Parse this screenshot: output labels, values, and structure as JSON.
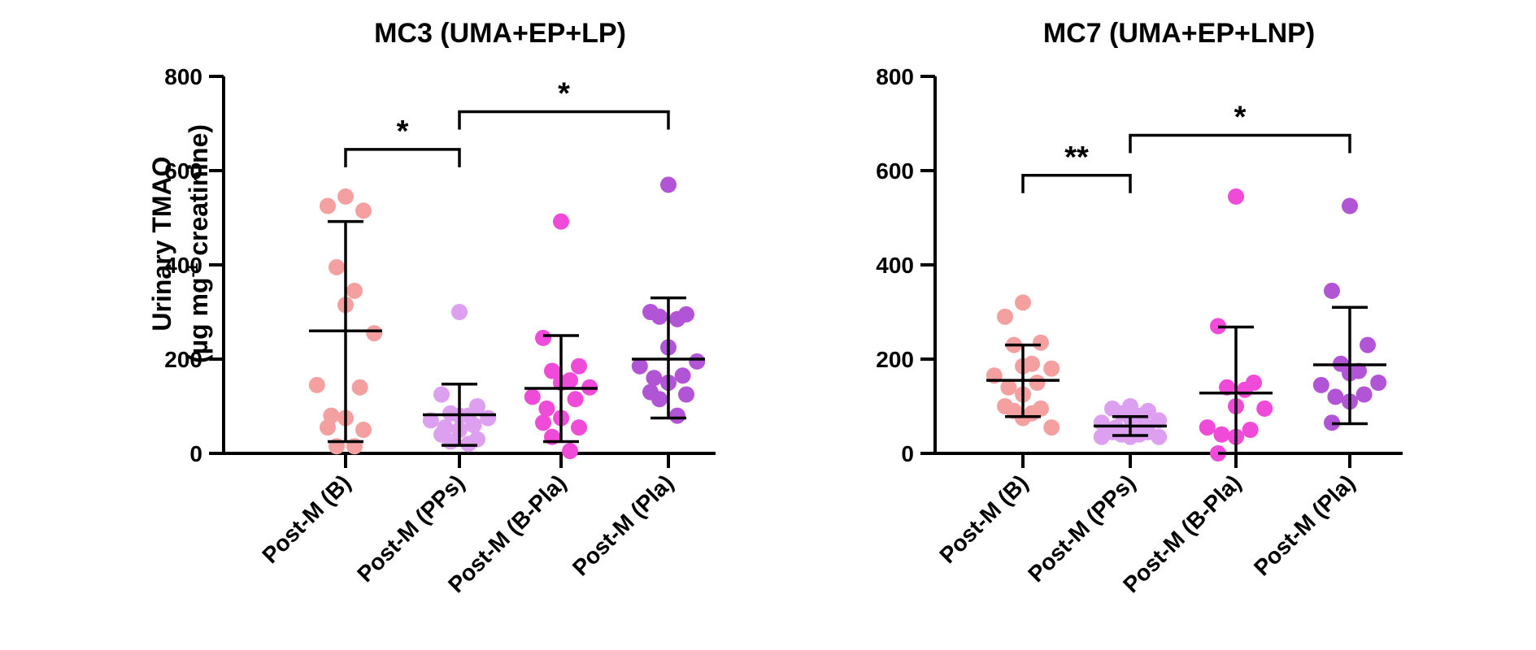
{
  "chart_data": [
    {
      "type": "scatter",
      "title": "MC3 (UMA+EP+LP)",
      "ylabel_line1": "Urinary TMAO",
      "ylabel_line2_pre": "(µg mg",
      "ylabel_line2_sup": "-1",
      "ylabel_line2_post": " creatinine)",
      "ylim": [
        0,
        800
      ],
      "yticks": [
        "0",
        "200",
        "400",
        "600",
        "800"
      ],
      "categories": [
        "Post-M (B)",
        "Post-M (PPs)",
        "Post-M (B-Pla)",
        "Post-M (Pla)"
      ],
      "colors": [
        "#F4A0A0",
        "#DDA0F0",
        "#F04AD8",
        "#B254D6"
      ],
      "series": [
        {
          "name": "Post-M (B)",
          "values": [
            545,
            525,
            515,
            395,
            345,
            315,
            255,
            145,
            140,
            80,
            75,
            55,
            50,
            15,
            15
          ],
          "mean": 260,
          "error_low": 25,
          "error_high": 492
        },
        {
          "name": "Post-M (PPs)",
          "values": [
            300,
            125,
            100,
            85,
            80,
            80,
            75,
            70,
            60,
            55,
            50,
            40,
            30,
            25,
            20
          ],
          "mean": 82,
          "error_low": 17,
          "error_high": 147
        },
        {
          "name": "Post-M (B-Pla)",
          "values": [
            492,
            245,
            185,
            175,
            155,
            150,
            140,
            120,
            115,
            95,
            75,
            65,
            55,
            35,
            5
          ],
          "mean": 138,
          "error_low": 25,
          "error_high": 250
        },
        {
          "name": "Post-M (Pla)",
          "values": [
            570,
            300,
            295,
            290,
            285,
            225,
            195,
            185,
            165,
            160,
            150,
            130,
            125,
            115,
            80
          ],
          "mean": 200,
          "error_low": 75,
          "error_high": 330
        }
      ],
      "significance": [
        {
          "from": 0,
          "to": 1,
          "label": "*",
          "y": 645
        },
        {
          "from": 1,
          "to": 3,
          "label": "*",
          "y": 725
        }
      ]
    },
    {
      "type": "scatter",
      "title": "MC7 (UMA+EP+LNP)",
      "ylim": [
        0,
        800
      ],
      "yticks": [
        "0",
        "200",
        "400",
        "600",
        "800"
      ],
      "categories": [
        "Post-M (B)",
        "Post-M (PPs)",
        "Post-M (B-Pla)",
        "Post-M (Pla)"
      ],
      "colors": [
        "#F4A0A0",
        "#DDA0F0",
        "#F04AD8",
        "#B254D6"
      ],
      "series": [
        {
          "name": "Post-M (B)",
          "values": [
            320,
            290,
            235,
            230,
            190,
            185,
            180,
            165,
            150,
            140,
            125,
            100,
            95,
            90,
            85,
            75,
            55
          ],
          "mean": 155,
          "error_low": 78,
          "error_high": 230
        },
        {
          "name": "Post-M (PPs)",
          "values": [
            100,
            95,
            90,
            85,
            80,
            75,
            70,
            65,
            60,
            55,
            50,
            45,
            45,
            40,
            40,
            35,
            35,
            35
          ],
          "mean": 58,
          "error_low": 38,
          "error_high": 78
        },
        {
          "name": "Post-M (B-Pla)",
          "values": [
            545,
            270,
            150,
            140,
            135,
            100,
            95,
            55,
            50,
            40,
            35,
            0
          ],
          "mean": 128,
          "error_low": 0,
          "error_high": 268
        },
        {
          "name": "Post-M (Pla)",
          "values": [
            525,
            345,
            230,
            190,
            175,
            170,
            150,
            145,
            125,
            120,
            110,
            65
          ],
          "mean": 188,
          "error_low": 63,
          "error_high": 310
        }
      ],
      "significance": [
        {
          "from": 0,
          "to": 1,
          "label": "**",
          "y": 590
        },
        {
          "from": 1,
          "to": 3,
          "label": "*",
          "y": 675
        }
      ]
    }
  ]
}
